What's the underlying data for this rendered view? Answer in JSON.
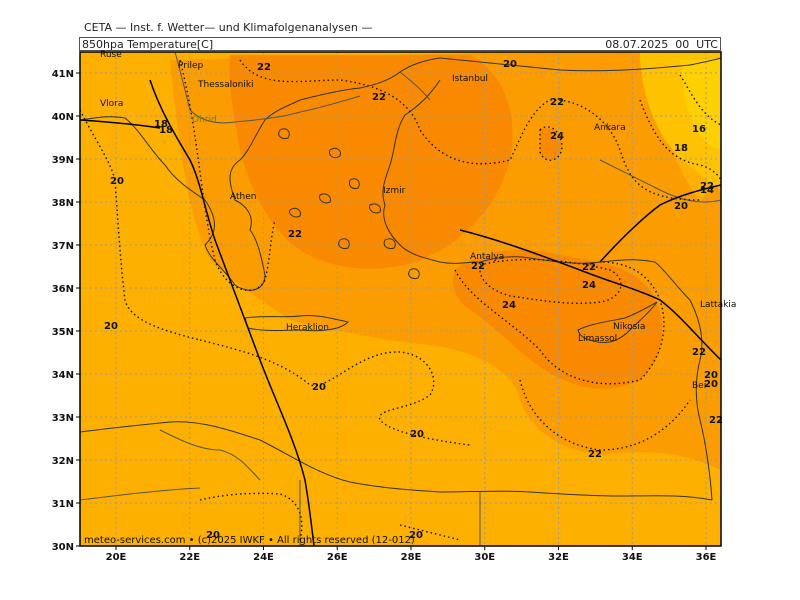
{
  "header": {
    "org": "CETA — Inst. f. Wetter— und Klimafolgenanalysen —",
    "parameter": "850hpa Temperature[C]",
    "datetime": "08.07.2025  00  UTC"
  },
  "axes": {
    "lat_labels": [
      "41N",
      "40N",
      "39N",
      "38N",
      "37N",
      "36N",
      "35N",
      "34N",
      "33N",
      "32N",
      "31N",
      "30N"
    ],
    "lon_labels": [
      "20E",
      "22E",
      "24E",
      "26E",
      "28E",
      "30E",
      "32E",
      "34E",
      "36E"
    ]
  },
  "contour_labels": [
    "22",
    "22",
    "22",
    "20",
    "22",
    "24",
    "16",
    "18",
    "14",
    "20",
    "18",
    "18",
    "20",
    "22",
    "20",
    "22",
    "24",
    "22",
    "24",
    "20",
    "20",
    "22",
    "20",
    "22",
    "20",
    "20",
    "22",
    "20"
  ],
  "places": [
    "Thessaloniki",
    "Istanbul",
    "Ankara",
    "Izmir",
    "Athen",
    "Antalya",
    "Heraklion",
    "Nikosia",
    "Limassol",
    "Lattakia",
    "Vlora",
    "Ohrid",
    "Bei",
    "Prilep",
    "Ruse"
  ],
  "colors": {
    "t16": "#ffd000",
    "t18": "#ffc200",
    "t20": "#fdb000",
    "t22": "#fb9d00",
    "t24": "#f98a00",
    "border": "#000000",
    "coast": "#333333",
    "grid": "#9a9a9a"
  },
  "footer": "meteo-services.com  •  (c)2025 IWKF  •  All rights reserved  (12-012)"
}
